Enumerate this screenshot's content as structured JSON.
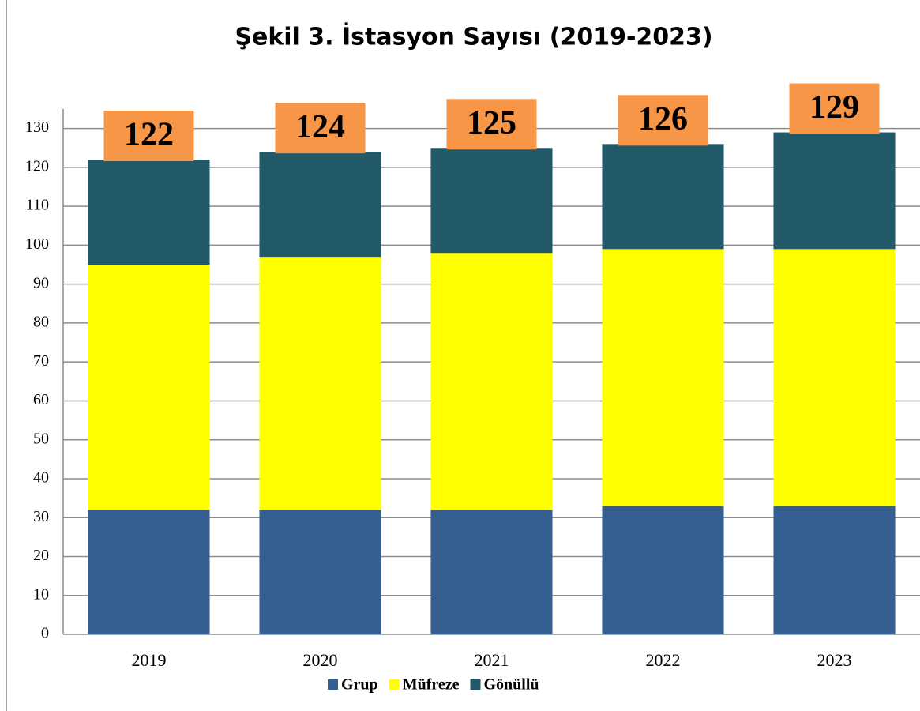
{
  "chart_data": {
    "type": "stacked_bar",
    "title": "Şekil 3. İstasyon Sayısı (2019-2023)",
    "categories": [
      "2019",
      "2020",
      "2021",
      "2022",
      "2023"
    ],
    "series": [
      {
        "name": "Grup",
        "color": "#365f91",
        "values": [
          32,
          32,
          32,
          33,
          33
        ]
      },
      {
        "name": "Müfreze",
        "color": "#ffff00",
        "values": [
          63,
          65,
          66,
          66,
          66
        ]
      },
      {
        "name": "Gönüllü",
        "color": "#215968",
        "values": [
          27,
          27,
          27,
          27,
          30
        ]
      }
    ],
    "total_labels": [
      122,
      124,
      125,
      126,
      129
    ],
    "total_label_color": "#f79646",
    "ylim": [
      0,
      135
    ],
    "yticks": [
      0,
      10,
      20,
      30,
      40,
      50,
      60,
      70,
      80,
      90,
      100,
      110,
      120,
      130
    ],
    "grid": true
  }
}
